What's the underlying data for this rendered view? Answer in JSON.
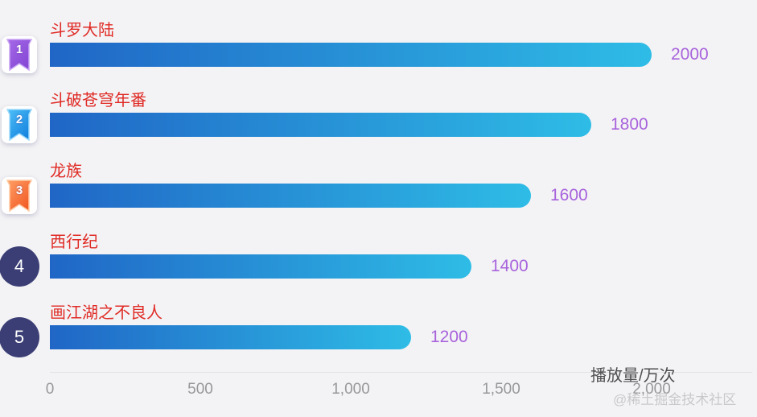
{
  "chart_data": {
    "type": "bar",
    "orientation": "horizontal",
    "title": "",
    "categories": [
      "斗罗大陆",
      "斗破苍穹年番",
      "龙族",
      "西行纪",
      "画江湖之不良人"
    ],
    "values": [
      2000,
      1800,
      1600,
      1400,
      1200
    ],
    "value_labels": [
      "2000",
      "1800",
      "1600",
      "1400",
      "1200"
    ],
    "xlabel": "播放量/万次",
    "ylabel": "",
    "xlim": [
      0,
      2000
    ],
    "tick_values": [
      0,
      500,
      1000,
      1500,
      2000
    ],
    "x_ticks": [
      "0",
      "500",
      "1,000",
      "1,500",
      "2,000"
    ],
    "grid": false,
    "legend": "none",
    "bar_gradient": [
      "#2066C6",
      "#2EBCE6"
    ],
    "category_label_color": "#E02B26",
    "value_label_color": "#A863DC",
    "background_color": "#F3F3F5",
    "badges": [
      {
        "rank": "1",
        "shape": "ribbon",
        "color_top": "#A76AE8",
        "color_bottom": "#7E42D2",
        "stroke": "#C9A6F2"
      },
      {
        "rank": "2",
        "shape": "ribbon",
        "color_top": "#4FC0F8",
        "color_bottom": "#0C79DB",
        "stroke": "#9FDAFB"
      },
      {
        "rank": "3",
        "shape": "ribbon",
        "color_top": "#FFA066",
        "color_bottom": "#F0511C",
        "stroke": "#FFC9A0"
      },
      {
        "rank": "4",
        "shape": "circle",
        "fill": "#3B3E75"
      },
      {
        "rank": "5",
        "shape": "circle",
        "fill": "#3B3E75"
      }
    ]
  },
  "watermark": "@稀土掘金技术社区"
}
